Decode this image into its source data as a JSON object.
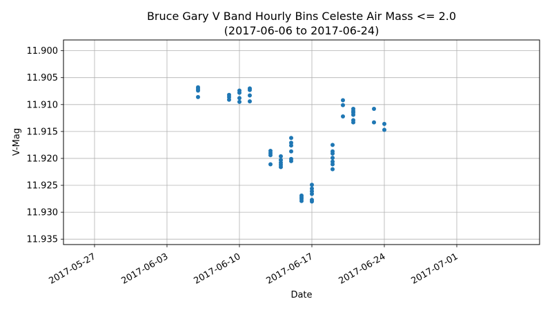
{
  "chart_data": {
    "type": "scatter",
    "title": "Bruce Gary V Band Hourly Bins Celeste Air Mass <= 2.0",
    "subtitle": "(2017-06-06 to 2017-06-24)",
    "xlabel": "Date",
    "ylabel": "V-Mag",
    "xlim": [
      "2017-05-24",
      "2017-07-09"
    ],
    "ylim": [
      11.936,
      11.898
    ],
    "y_inverted": true,
    "grid": true,
    "marker_color": "#1f77b4",
    "x_ticks": [
      "2017-05-27",
      "2017-06-03",
      "2017-06-10",
      "2017-06-17",
      "2017-06-24",
      "2017-07-01"
    ],
    "y_ticks": [
      "11.900",
      "11.905",
      "11.910",
      "11.915",
      "11.920",
      "11.925",
      "11.930",
      "11.935"
    ],
    "points": [
      {
        "x": "2017-06-06",
        "y": 11.9068
      },
      {
        "x": "2017-06-06",
        "y": 11.9071
      },
      {
        "x": "2017-06-06",
        "y": 11.9074
      },
      {
        "x": "2017-06-06",
        "y": 11.9086
      },
      {
        "x": "2017-06-09",
        "y": 11.9082
      },
      {
        "x": "2017-06-09",
        "y": 11.9086
      },
      {
        "x": "2017-06-09",
        "y": 11.9091
      },
      {
        "x": "2017-06-10",
        "y": 11.9074
      },
      {
        "x": "2017-06-10",
        "y": 11.9078
      },
      {
        "x": "2017-06-10",
        "y": 11.9088
      },
      {
        "x": "2017-06-10",
        "y": 11.9095
      },
      {
        "x": "2017-06-11",
        "y": 11.907
      },
      {
        "x": "2017-06-11",
        "y": 11.9073
      },
      {
        "x": "2017-06-11",
        "y": 11.9083
      },
      {
        "x": "2017-06-11",
        "y": 11.9094
      },
      {
        "x": "2017-06-13",
        "y": 11.9186
      },
      {
        "x": "2017-06-13",
        "y": 11.919
      },
      {
        "x": "2017-06-13",
        "y": 11.9194
      },
      {
        "x": "2017-06-13",
        "y": 11.9211
      },
      {
        "x": "2017-06-14",
        "y": 11.9196
      },
      {
        "x": "2017-06-14",
        "y": 11.9203
      },
      {
        "x": "2017-06-14",
        "y": 11.9208
      },
      {
        "x": "2017-06-14",
        "y": 11.9212
      },
      {
        "x": "2017-06-14",
        "y": 11.9216
      },
      {
        "x": "2017-06-15",
        "y": 11.9162
      },
      {
        "x": "2017-06-15",
        "y": 11.9171
      },
      {
        "x": "2017-06-15",
        "y": 11.9176
      },
      {
        "x": "2017-06-15",
        "y": 11.9187
      },
      {
        "x": "2017-06-15",
        "y": 11.9201
      },
      {
        "x": "2017-06-15",
        "y": 11.9205
      },
      {
        "x": "2017-06-16",
        "y": 11.9269
      },
      {
        "x": "2017-06-16",
        "y": 11.9272
      },
      {
        "x": "2017-06-16",
        "y": 11.9275
      },
      {
        "x": "2017-06-16",
        "y": 11.9279
      },
      {
        "x": "2017-06-17",
        "y": 11.9249
      },
      {
        "x": "2017-06-17",
        "y": 11.9256
      },
      {
        "x": "2017-06-17",
        "y": 11.9261
      },
      {
        "x": "2017-06-17",
        "y": 11.9266
      },
      {
        "x": "2017-06-17",
        "y": 11.9277
      },
      {
        "x": "2017-06-17",
        "y": 11.928
      },
      {
        "x": "2017-06-19",
        "y": 11.9175
      },
      {
        "x": "2017-06-19",
        "y": 11.9187
      },
      {
        "x": "2017-06-19",
        "y": 11.9191
      },
      {
        "x": "2017-06-19",
        "y": 11.9199
      },
      {
        "x": "2017-06-19",
        "y": 11.9206
      },
      {
        "x": "2017-06-19",
        "y": 11.9211
      },
      {
        "x": "2017-06-19",
        "y": 11.922
      },
      {
        "x": "2017-06-20",
        "y": 11.9092
      },
      {
        "x": "2017-06-20",
        "y": 11.9101
      },
      {
        "x": "2017-06-20",
        "y": 11.9122
      },
      {
        "x": "2017-06-21",
        "y": 11.9108
      },
      {
        "x": "2017-06-21",
        "y": 11.9112
      },
      {
        "x": "2017-06-21",
        "y": 11.9115
      },
      {
        "x": "2017-06-21",
        "y": 11.9119
      },
      {
        "x": "2017-06-21",
        "y": 11.9129
      },
      {
        "x": "2017-06-21",
        "y": 11.9133
      },
      {
        "x": "2017-06-23",
        "y": 11.9108
      },
      {
        "x": "2017-06-23",
        "y": 11.9133
      },
      {
        "x": "2017-06-24",
        "y": 11.9136
      },
      {
        "x": "2017-06-24",
        "y": 11.9147
      }
    ]
  }
}
